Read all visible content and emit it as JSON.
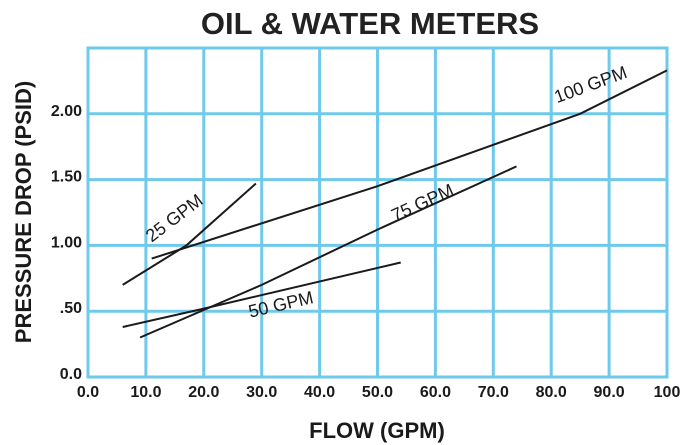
{
  "chart_data": {
    "type": "line",
    "title": "OIL & WATER METERS",
    "xlabel": "FLOW (GPM)",
    "ylabel": "PRESSURE DROP (PSID)",
    "xlim": [
      0,
      100
    ],
    "ylim": [
      0,
      2.5
    ],
    "grid": true,
    "grid_color": "#6ec9ea",
    "line_color": "#1a1a1a",
    "x_ticks": [
      {
        "value": 0,
        "label": "0.0"
      },
      {
        "value": 10,
        "label": "10.0"
      },
      {
        "value": 20,
        "label": "20.0"
      },
      {
        "value": 30,
        "label": "30.0"
      },
      {
        "value": 40,
        "label": "40.0"
      },
      {
        "value": 50,
        "label": "50.0"
      },
      {
        "value": 60,
        "label": "60.0"
      },
      {
        "value": 70,
        "label": "70.0"
      },
      {
        "value": 80,
        "label": "80.0"
      },
      {
        "value": 90,
        "label": "90.0"
      },
      {
        "value": 100,
        "label": "100"
      }
    ],
    "y_ticks": [
      {
        "value": 0,
        "label": "0.0"
      },
      {
        "value": 0.5,
        "label": ".50"
      },
      {
        "value": 1.0,
        "label": "1.00"
      },
      {
        "value": 1.5,
        "label": "1.50"
      },
      {
        "value": 2.0,
        "label": "2.00"
      }
    ],
    "series": [
      {
        "name": "25 GPM",
        "x": [
          6,
          17,
          29
        ],
        "y": [
          0.7,
          1.0,
          1.47
        ],
        "label_at": [
          11,
          1.02
        ]
      },
      {
        "name": "50 GPM",
        "x": [
          6,
          20,
          54
        ],
        "y": [
          0.38,
          0.52,
          0.87
        ],
        "label_at": [
          28,
          0.45
        ]
      },
      {
        "name": "75 GPM",
        "x": [
          9,
          30,
          50,
          74
        ],
        "y": [
          0.3,
          0.7,
          1.12,
          1.6
        ],
        "label_at": [
          53,
          1.18
        ]
      },
      {
        "name": "100 GPM",
        "x": [
          11,
          50,
          85,
          100
        ],
        "y": [
          0.9,
          1.45,
          2.0,
          2.33
        ],
        "label_at": [
          81,
          2.08
        ]
      }
    ]
  }
}
